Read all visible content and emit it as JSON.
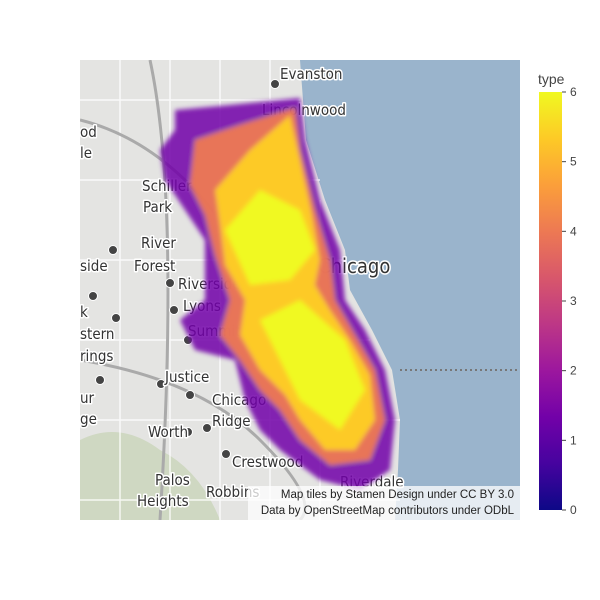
{
  "map": {
    "places": [
      {
        "name": "Evanston"
      },
      {
        "name": "Lincolnwood"
      },
      {
        "name": "od"
      },
      {
        "name": "le"
      },
      {
        "name": "Schiller"
      },
      {
        "name": "Park"
      },
      {
        "name": "River"
      },
      {
        "name": "Forest"
      },
      {
        "name": "side"
      },
      {
        "name": "Chicago"
      },
      {
        "name": "Riverside"
      },
      {
        "name": "Lyons"
      },
      {
        "name": "Summit"
      },
      {
        "name": "k"
      },
      {
        "name": "stern"
      },
      {
        "name": "rings"
      },
      {
        "name": "Justice"
      },
      {
        "name": "ur"
      },
      {
        "name": "ge"
      },
      {
        "name": "Chicago"
      },
      {
        "name": "Ridge"
      },
      {
        "name": "Worth"
      },
      {
        "name": "Crestwood"
      },
      {
        "name": "Palos"
      },
      {
        "name": "Heights"
      },
      {
        "name": "Robbins"
      },
      {
        "name": "Riverdale"
      }
    ],
    "attribution": [
      "Map tiles by Stamen Design under CC BY 3.0",
      "Data by OpenStreetMap contributors under ODbL"
    ]
  },
  "colorbar": {
    "title": "type",
    "range": [
      0,
      6
    ],
    "ticks": [
      0,
      1,
      2,
      3,
      4,
      5,
      6
    ],
    "colorscale": [
      "#0d0887",
      "#46039f",
      "#7201a8",
      "#9c179e",
      "#bd3786",
      "#d8576b",
      "#ed7953",
      "#fb9f3a",
      "#fdca26",
      "#f0f921"
    ]
  }
}
